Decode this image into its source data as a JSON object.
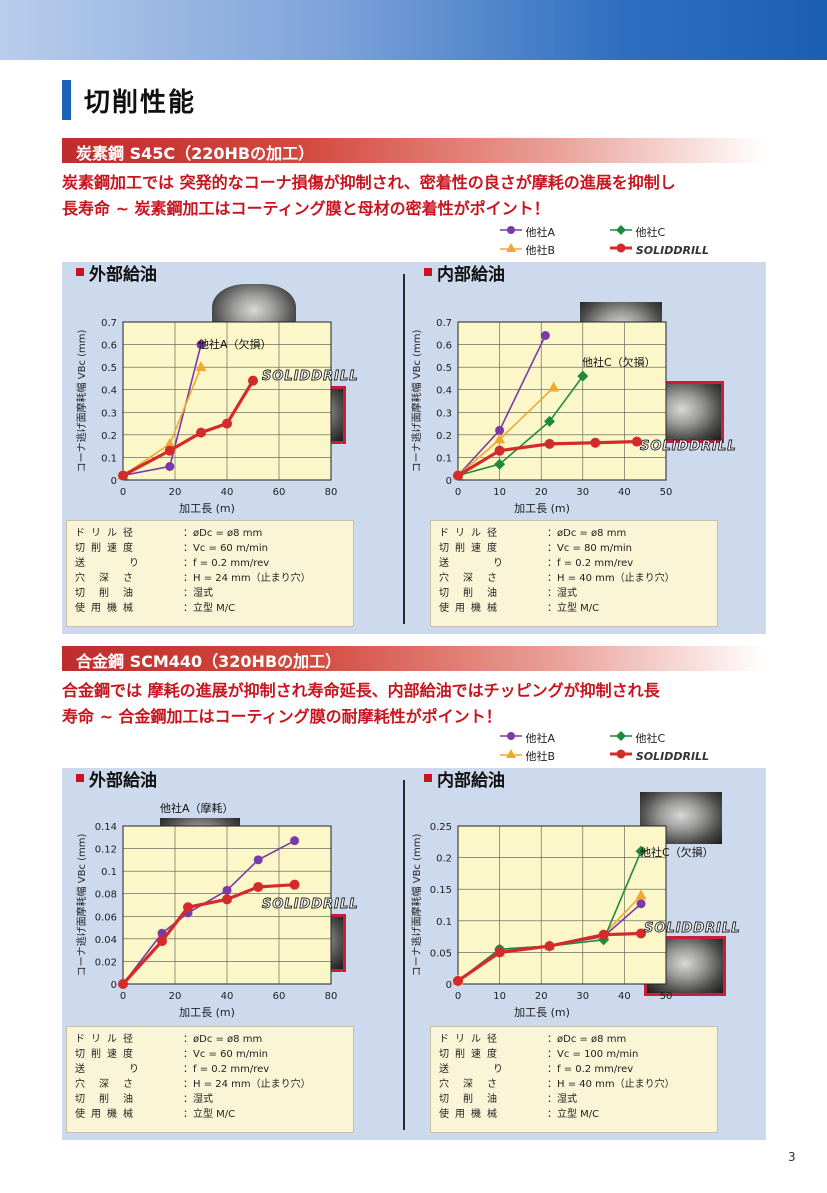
{
  "page": {
    "title": "切削性能",
    "page_number": "3"
  },
  "sections": [
    {
      "band": "炭素鋼 S45C（220HBの加工）",
      "lead": [
        "炭素鋼加工では 突発的なコーナ損傷が抑制され、密着性の良さが摩耗の進展を抑制し",
        "長寿命 ~ 炭素鋼加工はコーティング膜と母材の密着性がポイント！"
      ],
      "legend": {
        "a": "他社A",
        "b": "他社B",
        "c": "他社C",
        "solid": "SOLIDDRILL"
      },
      "external": {
        "heading": "外部給油",
        "annotation": "他社A（欠損）",
        "brand": "SOLIDDRILL",
        "conditions": [
          [
            "ドリル径",
            "：øDc = ø8 mm"
          ],
          [
            "切削速度",
            "：Vc = 60 m/min"
          ],
          [
            "送り",
            "：f = 0.2 mm/rev"
          ],
          [
            "穴深さ",
            "：H = 24 mm（止まり穴）"
          ],
          [
            "切削油",
            "：湿式"
          ],
          [
            "使用機械",
            "：立型 M/C"
          ]
        ]
      },
      "internal": {
        "heading": "内部給油",
        "annotation": "他社C（欠損）",
        "brand": "SOLIDDRILL",
        "conditions": [
          [
            "ドリル径",
            "：øDc = ø8 mm"
          ],
          [
            "切削速度",
            "：Vc = 80 m/min"
          ],
          [
            "送り",
            "：f = 0.2 mm/rev"
          ],
          [
            "穴深さ",
            "：H = 40 mm（止まり穴）"
          ],
          [
            "切削油",
            "：湿式"
          ],
          [
            "使用機械",
            "：立型 M/C"
          ]
        ]
      }
    },
    {
      "band": "合金鋼 SCM440（320HBの加工）",
      "lead": [
        "合金鋼では 摩耗の進展が抑制され寿命延長、内部給油ではチッピングが抑制され長",
        "寿命 ~ 合金鋼加工はコーティング膜の耐摩耗性がポイント！"
      ],
      "legend": {
        "a": "他社A",
        "b": "他社B",
        "c": "他社C",
        "solid": "SOLIDDRILL"
      },
      "external": {
        "heading": "外部給油",
        "annotation": "他社A（摩耗）",
        "brand": "SOLIDDRILL",
        "conditions": [
          [
            "ドリル径",
            "：øDc = ø8 mm"
          ],
          [
            "切削速度",
            "：Vc = 60 m/min"
          ],
          [
            "送り",
            "：f = 0.2 mm/rev"
          ],
          [
            "穴深さ",
            "：H = 24 mm（止まり穴）"
          ],
          [
            "切削油",
            "：湿式"
          ],
          [
            "使用機械",
            "：立型 M/C"
          ]
        ]
      },
      "internal": {
        "heading": "内部給油",
        "annotation": "他社C（欠損）",
        "brand": "SOLIDDRILL",
        "conditions": [
          [
            "ドリル径",
            "：øDc = ø8 mm"
          ],
          [
            "切削速度",
            "：Vc = 100 m/min"
          ],
          [
            "送り",
            "：f = 0.2 mm/rev"
          ],
          [
            "穴深さ",
            "：H = 40 mm（止まり穴）"
          ],
          [
            "切削油",
            "：湿式"
          ],
          [
            "使用機械",
            "：立型 M/C"
          ]
        ]
      }
    }
  ],
  "colors": {
    "a": "#7b3aa6",
    "b": "#f0a830",
    "c": "#1f8a3c",
    "solid": "#d42a2a",
    "band": "#c0302a",
    "accent": "#1a63b8"
  },
  "chart_data": [
    {
      "type": "line",
      "ylabel": "コーナ逃げ面摩耗幅 VBc (mm)",
      "xlabel": "加工長 (m)",
      "xlim": [
        0,
        80
      ],
      "ylim": [
        0,
        0.7
      ],
      "xticks": [
        0,
        20,
        40,
        60,
        80
      ],
      "yticks": [
        0.1,
        0.2,
        0.3,
        0.4,
        0.5,
        0.6,
        0.7
      ],
      "series": [
        {
          "name": "他社A",
          "key": "a",
          "x": [
            0,
            18,
            30
          ],
          "y": [
            0.02,
            0.06,
            0.6
          ]
        },
        {
          "name": "他社B",
          "key": "b",
          "x": [
            0,
            18,
            30
          ],
          "y": [
            0.02,
            0.16,
            0.5
          ]
        },
        {
          "name": "SOLIDDRILL",
          "key": "solid",
          "x": [
            0,
            18,
            30,
            40,
            50
          ],
          "y": [
            0.02,
            0.13,
            0.21,
            0.25,
            0.44
          ]
        }
      ]
    },
    {
      "type": "line",
      "ylabel": "コーナ逃げ面摩耗幅 VBc (mm)",
      "xlabel": "加工長 (m)",
      "xlim": [
        0,
        50
      ],
      "ylim": [
        0,
        0.7
      ],
      "xticks": [
        0,
        10,
        20,
        30,
        40,
        50
      ],
      "yticks": [
        0.1,
        0.2,
        0.3,
        0.4,
        0.5,
        0.6,
        0.7
      ],
      "series": [
        {
          "name": "他社A",
          "key": "a",
          "x": [
            0,
            10,
            21
          ],
          "y": [
            0.02,
            0.22,
            0.64
          ]
        },
        {
          "name": "他社B",
          "key": "b",
          "x": [
            0,
            10,
            23
          ],
          "y": [
            0.02,
            0.18,
            0.41
          ]
        },
        {
          "name": "他社C",
          "key": "c",
          "x": [
            0,
            10,
            22,
            30
          ],
          "y": [
            0.02,
            0.07,
            0.26,
            0.46
          ]
        },
        {
          "name": "SOLIDDRILL",
          "key": "solid",
          "x": [
            0,
            10,
            22,
            33,
            43
          ],
          "y": [
            0.02,
            0.13,
            0.16,
            0.165,
            0.17
          ]
        }
      ]
    },
    {
      "type": "line",
      "ylabel": "コーナ逃げ面摩耗幅 VBc (mm)",
      "xlabel": "加工長 (m)",
      "xlim": [
        0,
        80
      ],
      "ylim": [
        0,
        0.14
      ],
      "xticks": [
        0,
        20,
        40,
        60,
        80
      ],
      "yticks": [
        0.02,
        0.04,
        0.06,
        0.08,
        0.1,
        0.12,
        0.14
      ],
      "series": [
        {
          "name": "他社A",
          "key": "a",
          "x": [
            0,
            15,
            25,
            40,
            52,
            66
          ],
          "y": [
            0.0,
            0.045,
            0.063,
            0.083,
            0.11,
            0.127
          ]
        },
        {
          "name": "SOLIDDRILL",
          "key": "solid",
          "x": [
            0,
            15,
            25,
            40,
            52,
            66
          ],
          "y": [
            0.0,
            0.038,
            0.068,
            0.075,
            0.086,
            0.088
          ]
        }
      ]
    },
    {
      "type": "line",
      "ylabel": "コーナ逃げ面摩耗幅 VBc (mm)",
      "xlabel": "加工長 (m)",
      "xlim": [
        0,
        50
      ],
      "ylim": [
        0,
        0.25
      ],
      "xticks": [
        0,
        10,
        20,
        30,
        40,
        50
      ],
      "yticks": [
        0.05,
        0.1,
        0.15,
        0.2,
        0.25
      ],
      "series": [
        {
          "name": "他社A",
          "key": "a",
          "x": [
            0,
            10,
            22,
            35,
            44
          ],
          "y": [
            0.005,
            0.055,
            0.06,
            0.075,
            0.127
          ]
        },
        {
          "name": "他社B",
          "key": "b",
          "x": [
            0,
            10,
            22,
            35,
            44
          ],
          "y": [
            0.005,
            0.05,
            0.06,
            0.078,
            0.14
          ]
        },
        {
          "name": "他社C",
          "key": "c",
          "x": [
            0,
            10,
            22,
            35,
            44
          ],
          "y": [
            0.005,
            0.055,
            0.06,
            0.07,
            0.21
          ]
        },
        {
          "name": "SOLIDDRILL",
          "key": "solid",
          "x": [
            0,
            10,
            22,
            35,
            44
          ],
          "y": [
            0.005,
            0.05,
            0.06,
            0.078,
            0.08
          ]
        }
      ]
    }
  ]
}
